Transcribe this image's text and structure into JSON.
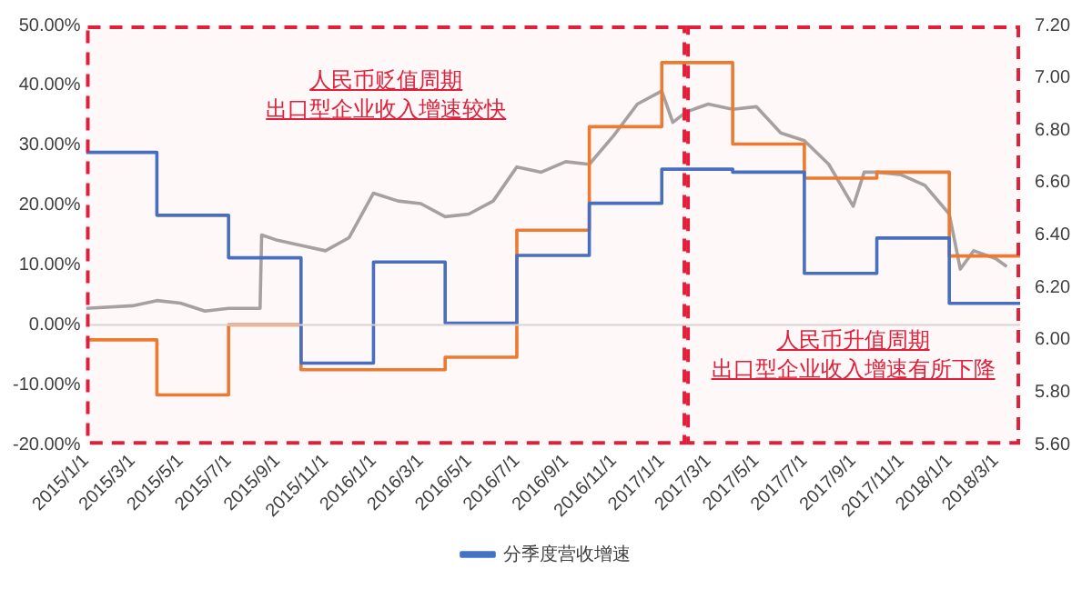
{
  "chart_data": {
    "type": "step",
    "xlim": [
      "2015-01-01",
      "2018-04-01"
    ],
    "xticks": [
      {
        "value": "2015-01-01",
        "label": "2015/1/1"
      },
      {
        "value": "2015-03-01",
        "label": "2015/3/1"
      },
      {
        "value": "2015-05-01",
        "label": "2015/5/1"
      },
      {
        "value": "2015-07-01",
        "label": "2015/7/1"
      },
      {
        "value": "2015-09-01",
        "label": "2015/9/1"
      },
      {
        "value": "2015-11-01",
        "label": "2015/11/1"
      },
      {
        "value": "2016-01-01",
        "label": "2016/1/1"
      },
      {
        "value": "2016-03-01",
        "label": "2016/3/1"
      },
      {
        "value": "2016-05-01",
        "label": "2016/5/1"
      },
      {
        "value": "2016-07-01",
        "label": "2016/7/1"
      },
      {
        "value": "2016-09-01",
        "label": "2016/9/1"
      },
      {
        "value": "2016-11-01",
        "label": "2016/11/1"
      },
      {
        "value": "2017-01-01",
        "label": "2017/1/1"
      },
      {
        "value": "2017-03-01",
        "label": "2017/3/1"
      },
      {
        "value": "2017-05-01",
        "label": "2017/5/1"
      },
      {
        "value": "2017-07-01",
        "label": "2017/7/1"
      },
      {
        "value": "2017-09-01",
        "label": "2017/9/1"
      },
      {
        "value": "2017-11-01",
        "label": "2017/11/1"
      },
      {
        "value": "2018-01-01",
        "label": "2018/1/1"
      },
      {
        "value": "2018-03-01",
        "label": "2018/3/1"
      }
    ],
    "ylim": [
      -20,
      50
    ],
    "yticks": [
      {
        "value": -20,
        "label": "-20.00%"
      },
      {
        "value": -10,
        "label": "-10.00%"
      },
      {
        "value": 0,
        "label": "0.00%"
      },
      {
        "value": 10,
        "label": "10.00%"
      },
      {
        "value": 20,
        "label": "20.00%"
      },
      {
        "value": 30,
        "label": "30.00%"
      },
      {
        "value": 40,
        "label": "40.00%"
      },
      {
        "value": 50,
        "label": "50.00%"
      }
    ],
    "y2lim": [
      5.6,
      7.2
    ],
    "y2ticks": [
      {
        "value": 5.6,
        "label": "5.60"
      },
      {
        "value": 5.8,
        "label": "5.80"
      },
      {
        "value": 6.0,
        "label": "6.00"
      },
      {
        "value": 6.2,
        "label": "6.20"
      },
      {
        "value": 6.4,
        "label": "6.40"
      },
      {
        "value": 6.6,
        "label": "6.60"
      },
      {
        "value": 6.8,
        "label": "6.80"
      },
      {
        "value": 7.0,
        "label": "7.00"
      },
      {
        "value": 7.2,
        "label": "7.20"
      }
    ],
    "series": [
      {
        "name": "分季度营收增速",
        "color": "#4472c4",
        "x": [
          "2015-01-01",
          "2015-04-01",
          "2015-07-01",
          "2015-10-01",
          "2016-01-01",
          "2016-04-01",
          "2016-07-01",
          "2016-10-01",
          "2017-01-01",
          "2017-04-01",
          "2017-07-01",
          "2017-10-01",
          "2018-01-01",
          "2018-04-01"
        ],
        "values": [
          28.8,
          18.3,
          11.2,
          -6.4,
          10.5,
          0.3,
          11.6,
          20.3,
          26,
          25.5,
          8.6,
          14.5,
          3.6,
          3.6
        ]
      },
      {
        "color": "#ed7d31",
        "x": [
          "2015-01-01",
          "2015-04-01",
          "2015-07-01",
          "2015-10-01",
          "2016-01-01",
          "2016-04-01",
          "2016-07-01",
          "2016-10-01",
          "2017-01-01",
          "2017-04-01",
          "2017-07-01",
          "2017-10-01",
          "2018-01-01",
          "2018-04-01"
        ],
        "values": [
          -2.5,
          -11.7,
          0,
          -7.5,
          -7.5,
          -5.4,
          15.8,
          33.1,
          43.8,
          30.2,
          24.5,
          25.5,
          11.5,
          11.5
        ]
      },
      {
        "type": "line",
        "axis": "y2",
        "color": "#a5a5a5",
        "x": [
          "2015-01-01",
          "2015-03-01",
          "2015-04-01",
          "2015-05-01",
          "2015-06-01",
          "2015-07-01",
          "2015-08-10",
          "2015-08-12",
          "2015-09-01",
          "2015-10-01",
          "2015-11-01",
          "2015-12-01",
          "2016-01-01",
          "2016-02-01",
          "2016-03-01",
          "2016-04-01",
          "2016-05-01",
          "2016-06-01",
          "2016-07-01",
          "2016-08-01",
          "2016-09-01",
          "2016-10-01",
          "2016-11-01",
          "2016-12-01",
          "2017-01-01",
          "2017-01-15",
          "2017-02-01",
          "2017-03-01",
          "2017-04-01",
          "2017-05-01",
          "2017-06-01",
          "2017-07-01",
          "2017-08-01",
          "2017-09-01",
          "2017-09-15",
          "2017-10-01",
          "2017-11-01",
          "2017-12-01",
          "2018-01-01",
          "2018-01-15",
          "2018-02-01",
          "2018-03-01",
          "2018-03-15"
        ],
        "values": [
          6.12,
          6.13,
          6.15,
          6.14,
          6.11,
          6.12,
          6.12,
          6.4,
          6.38,
          6.36,
          6.34,
          6.39,
          6.56,
          6.53,
          6.52,
          6.47,
          6.48,
          6.53,
          6.66,
          6.64,
          6.68,
          6.67,
          6.78,
          6.9,
          6.95,
          6.83,
          6.87,
          6.9,
          6.88,
          6.89,
          6.79,
          6.76,
          6.67,
          6.51,
          6.64,
          6.64,
          6.63,
          6.59,
          6.48,
          6.27,
          6.34,
          6.31,
          6.28
        ]
      }
    ],
    "ref_lines": [
      {
        "axis": "y",
        "value": 0,
        "color": "#d9d9d9"
      }
    ],
    "bands": [
      {
        "axis": "x",
        "from": "2015-01-01",
        "to": "2017-02-01",
        "color": "#e0203a"
      },
      {
        "axis": "x",
        "from": "2017-02-01",
        "to": "2018-04-01",
        "color": "#e0203a"
      }
    ],
    "annotations": [
      "人民币贬值周期",
      "出口型企业收入增速较快",
      "人民币升值周期",
      "出口型企业收入增速有所下降"
    ],
    "legend": "bottom",
    "grid": false,
    "line_style": "solid",
    "marker": "none"
  }
}
